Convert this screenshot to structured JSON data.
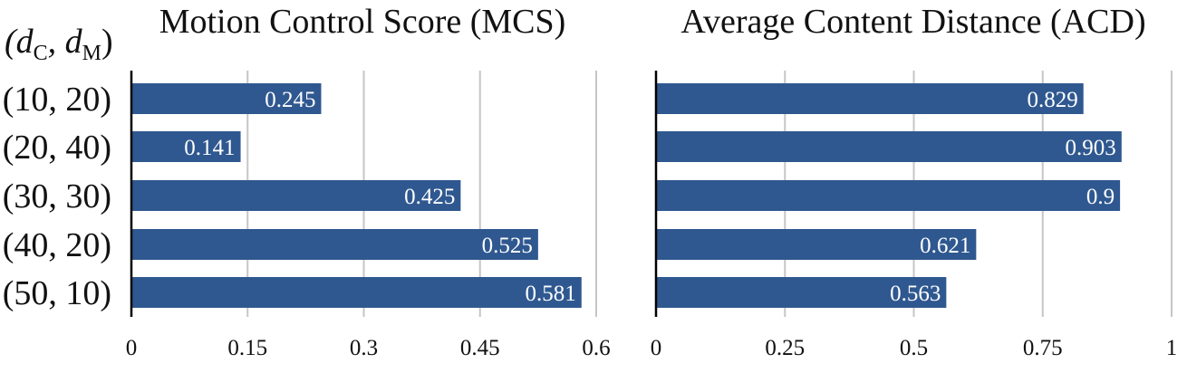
{
  "bar_color": "#2f5890",
  "category_label": {
    "base": "(d",
    "sub1": "C",
    "mid": ", d",
    "sub2": "M",
    "end": ")"
  },
  "categories": [
    "(10, 20)",
    "(20, 40)",
    "(30, 30)",
    "(40, 20)",
    "(50, 10)"
  ],
  "chart_data": [
    {
      "type": "bar",
      "orientation": "horizontal",
      "title": "Motion Control Score (MCS)",
      "categories": [
        "(10, 20)",
        "(20, 40)",
        "(30, 30)",
        "(40, 20)",
        "(50, 10)"
      ],
      "values": [
        0.245,
        0.141,
        0.425,
        0.525,
        0.581
      ],
      "value_labels": [
        "0.245",
        "0.141",
        "0.425",
        "0.525",
        "0.581"
      ],
      "xlim": [
        0,
        0.6
      ],
      "ticks": [
        0,
        0.15,
        0.3,
        0.45,
        0.6
      ],
      "tick_labels": [
        "0",
        "0.15",
        "0.3",
        "0.45",
        "0.6"
      ],
      "grid": true
    },
    {
      "type": "bar",
      "orientation": "horizontal",
      "title": "Average Content Distance (ACD)",
      "categories": [
        "(10, 20)",
        "(20, 40)",
        "(30, 30)",
        "(40, 20)",
        "(50, 10)"
      ],
      "values": [
        0.829,
        0.903,
        0.9,
        0.621,
        0.563
      ],
      "value_labels": [
        "0.829",
        "0.903",
        "0.9",
        "0.621",
        "0.563"
      ],
      "xlim": [
        0,
        1
      ],
      "ticks": [
        0,
        0.25,
        0.5,
        0.75,
        1
      ],
      "tick_labels": [
        "0",
        "0.25",
        "0.5",
        "0.75",
        "1"
      ],
      "grid": true
    }
  ]
}
